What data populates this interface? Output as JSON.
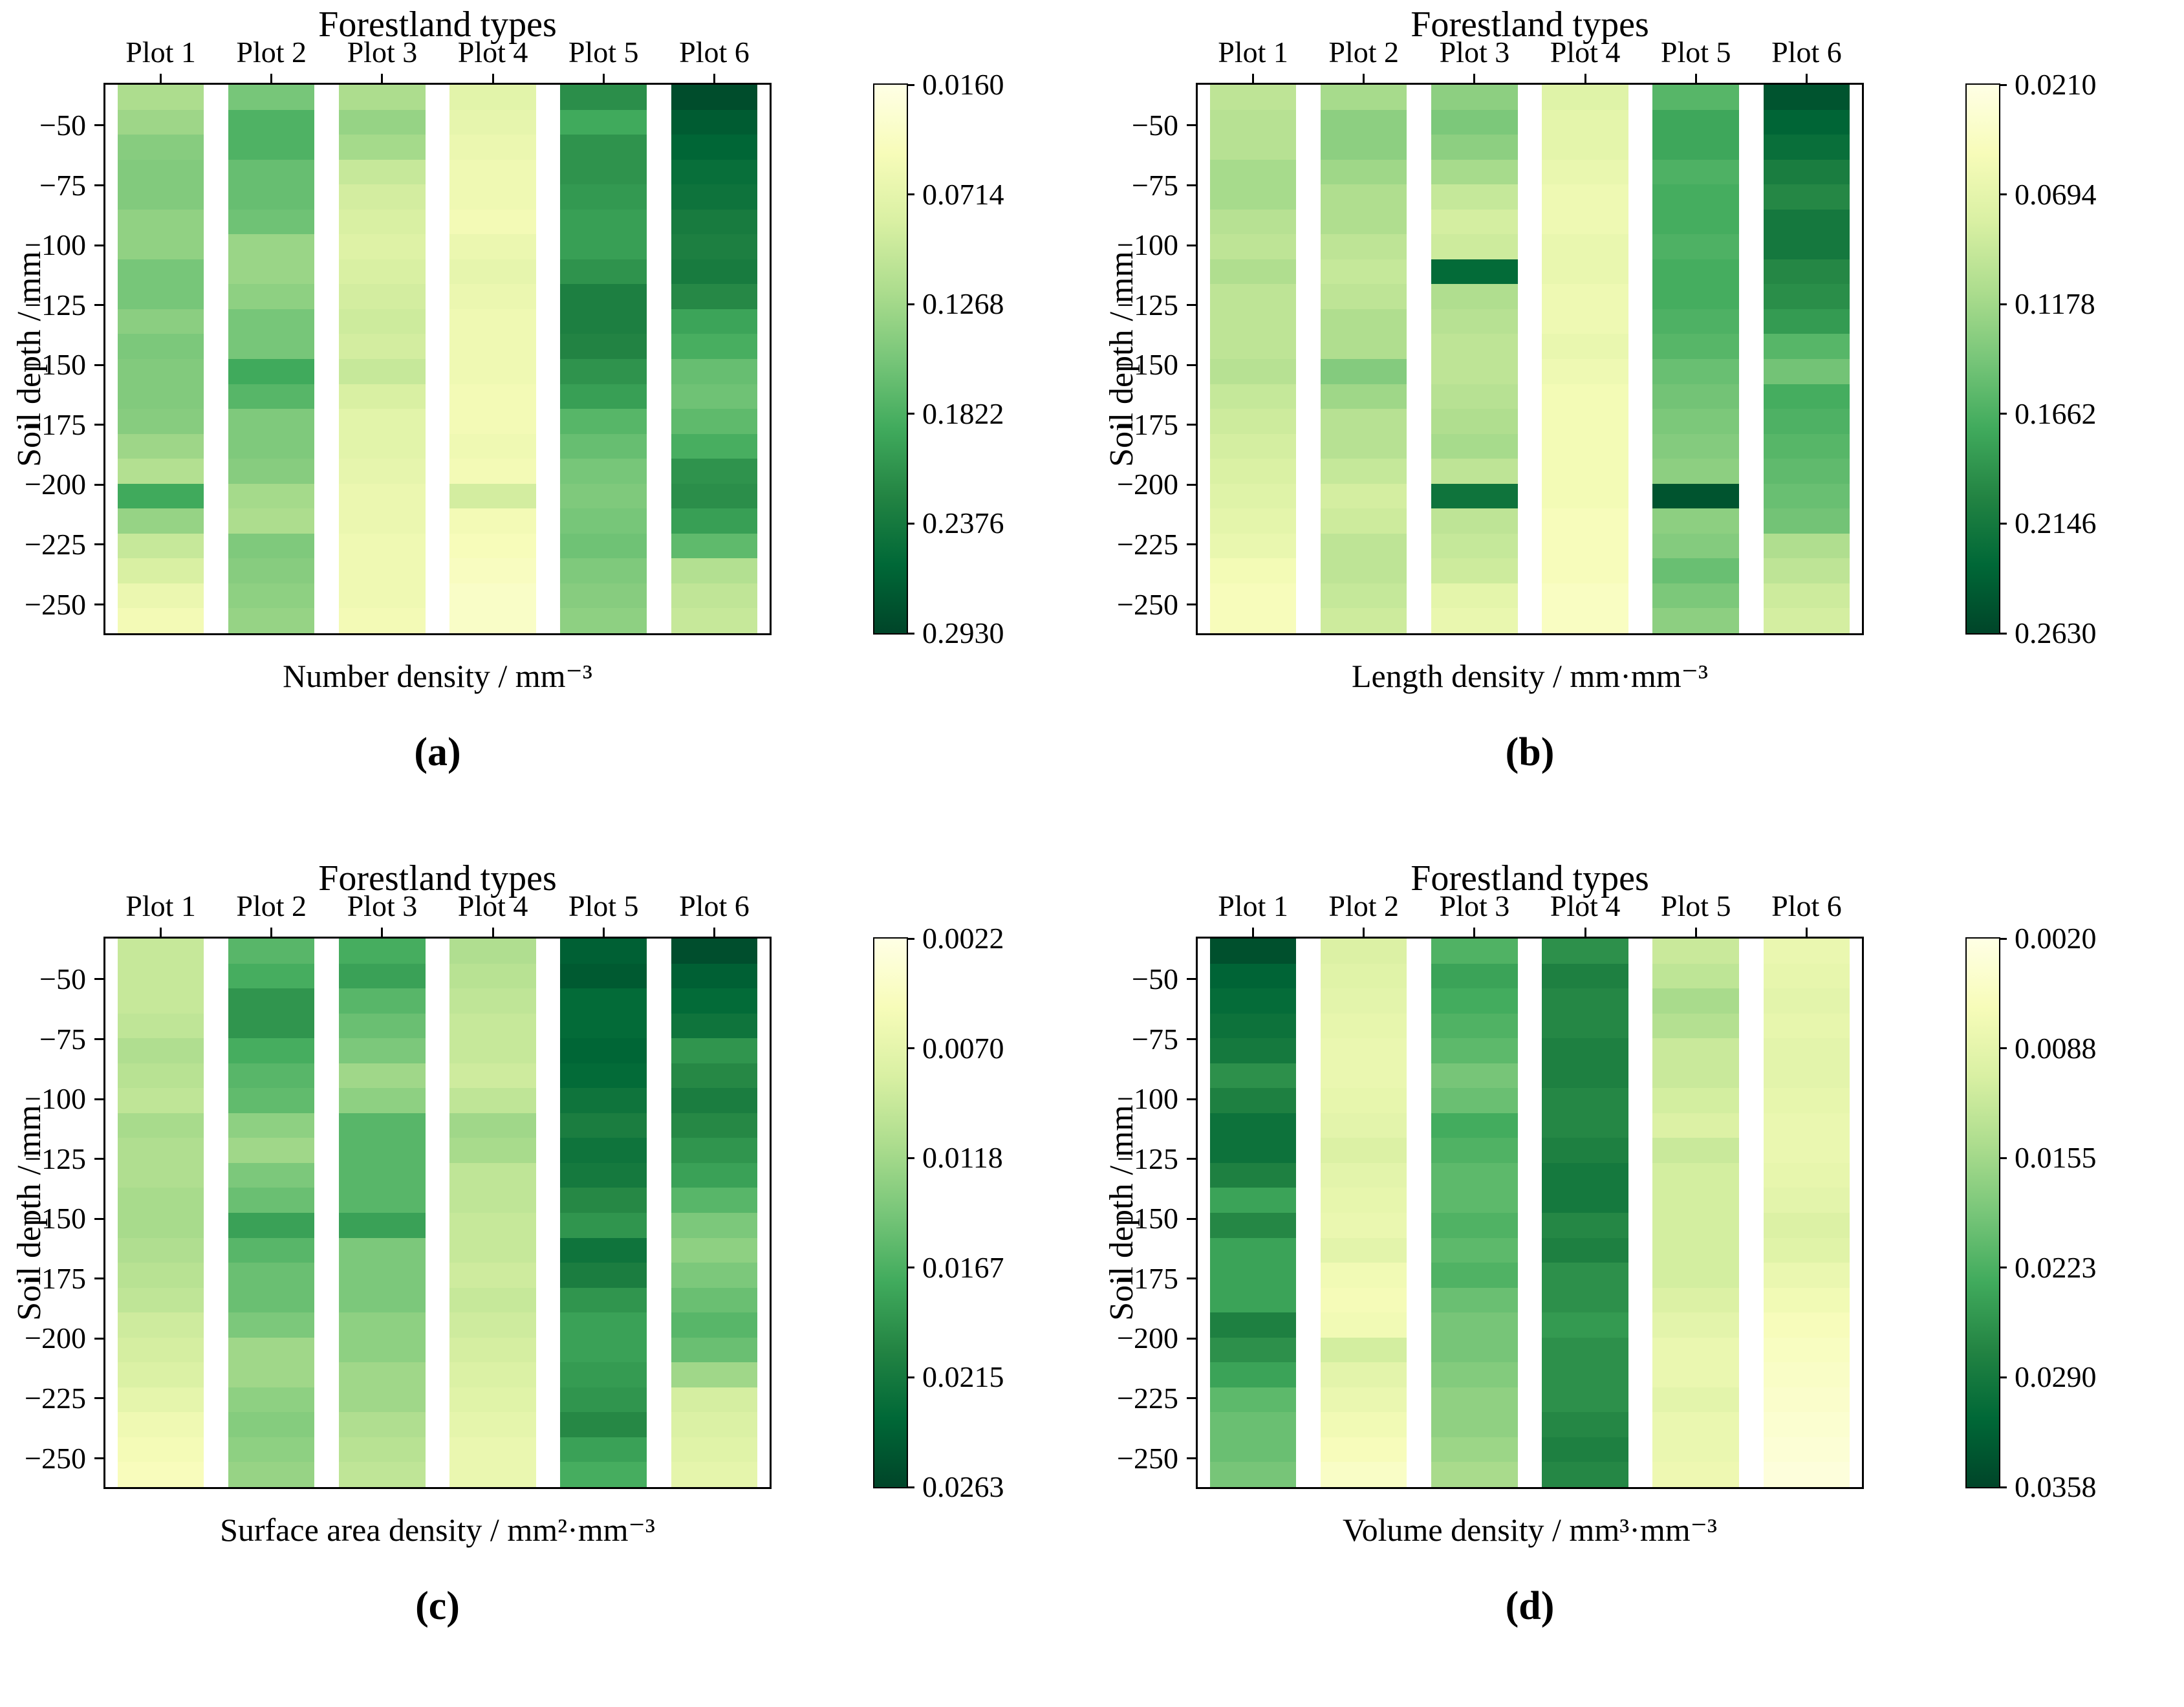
{
  "figure": {
    "background": "#ffffff",
    "text_color": "#000000"
  },
  "colormap_anchors": [
    "#ffffe5",
    "#f7fcb9",
    "#d9f0a3",
    "#addd8e",
    "#78c679",
    "#41ab5d",
    "#238443",
    "#006837",
    "#004529"
  ],
  "chart_data": [
    {
      "id": "a",
      "caption": "(a)",
      "title": "Forestland types",
      "type": "heatmap",
      "xlabel": "Number density / mm⁻³",
      "ylabel": "Soil depth / mm",
      "columns": [
        "Plot 1",
        "Plot 2",
        "Plot 3",
        "Plot 4",
        "Plot 5",
        "Plot 6"
      ],
      "depth_tick_labels": [
        "−50",
        "−75",
        "−100",
        "−125",
        "−150",
        "−175",
        "−200",
        "−225",
        "−250"
      ],
      "depth_ticks": [
        -50,
        -75,
        -100,
        -125,
        -150,
        -175,
        -200,
        -225,
        -250
      ],
      "depth_range": [
        -33,
        -262
      ],
      "row_depths": [
        -40,
        -50,
        -60,
        -70,
        -80,
        -90,
        -100,
        -110,
        -120,
        -130,
        -140,
        -150,
        -160,
        -170,
        -180,
        -190,
        -200,
        -210,
        -220,
        -230,
        -240,
        -250
      ],
      "vmin": 0.016,
      "vmax": 0.293,
      "colorbar_ticks": [
        "0.0160",
        "0.0714",
        "0.1268",
        "0.1822",
        "0.2376",
        "0.2930"
      ],
      "legend_position": "right",
      "grid": false,
      "series": [
        {
          "name": "Plot 1",
          "values": [
            0.12,
            0.13,
            0.145,
            0.148,
            0.148,
            0.138,
            0.138,
            0.155,
            0.155,
            0.142,
            0.152,
            0.148,
            0.148,
            0.145,
            0.13,
            0.115,
            0.19,
            0.135,
            0.1,
            0.085,
            0.065,
            0.055
          ]
        },
        {
          "name": "Plot 2",
          "values": [
            0.155,
            0.18,
            0.18,
            0.165,
            0.165,
            0.16,
            0.132,
            0.132,
            0.14,
            0.155,
            0.155,
            0.19,
            0.175,
            0.15,
            0.15,
            0.145,
            0.125,
            0.12,
            0.15,
            0.145,
            0.14,
            0.135
          ]
        },
        {
          "name": "Plot 3",
          "values": [
            0.12,
            0.135,
            0.125,
            0.1,
            0.09,
            0.085,
            0.08,
            0.085,
            0.09,
            0.095,
            0.09,
            0.1,
            0.085,
            0.075,
            0.075,
            0.07,
            0.065,
            0.065,
            0.06,
            0.06,
            0.06,
            0.055
          ]
        },
        {
          "name": "Plot 4",
          "values": [
            0.075,
            0.07,
            0.065,
            0.06,
            0.06,
            0.055,
            0.065,
            0.07,
            0.065,
            0.06,
            0.06,
            0.06,
            0.055,
            0.055,
            0.06,
            0.055,
            0.09,
            0.055,
            0.05,
            0.045,
            0.04,
            0.04
          ]
        },
        {
          "name": "Plot 5",
          "values": [
            0.215,
            0.19,
            0.21,
            0.21,
            0.205,
            0.2,
            0.2,
            0.21,
            0.23,
            0.23,
            0.225,
            0.21,
            0.2,
            0.175,
            0.165,
            0.155,
            0.15,
            0.155,
            0.16,
            0.15,
            0.145,
            0.14
          ]
        },
        {
          "name": "Plot 6",
          "values": [
            0.285,
            0.27,
            0.26,
            0.25,
            0.245,
            0.235,
            0.23,
            0.235,
            0.22,
            0.195,
            0.185,
            0.165,
            0.16,
            0.17,
            0.185,
            0.21,
            0.215,
            0.2,
            0.17,
            0.115,
            0.105,
            0.1
          ]
        }
      ]
    },
    {
      "id": "b",
      "caption": "(b)",
      "title": "Forestland types",
      "type": "heatmap",
      "xlabel": "Length density / mm·mm⁻³",
      "ylabel": "Soil depth / mm",
      "columns": [
        "Plot 1",
        "Plot 2",
        "Plot 3",
        "Plot 4",
        "Plot 5",
        "Plot 6"
      ],
      "depth_tick_labels": [
        "−50",
        "−75",
        "−100",
        "−125",
        "−150",
        "−175",
        "−200",
        "−225",
        "−250"
      ],
      "depth_ticks": [
        -50,
        -75,
        -100,
        -125,
        -150,
        -175,
        -200,
        -225,
        -250
      ],
      "depth_range": [
        -33,
        -262
      ],
      "row_depths": [
        -40,
        -50,
        -60,
        -70,
        -80,
        -90,
        -100,
        -110,
        -120,
        -130,
        -140,
        -150,
        -160,
        -170,
        -180,
        -190,
        -200,
        -210,
        -220,
        -230,
        -240,
        -250
      ],
      "vmin": 0.021,
      "vmax": 0.263,
      "colorbar_ticks": [
        "0.0210",
        "0.0694",
        "0.1178",
        "0.1662",
        "0.2146",
        "0.2630"
      ],
      "legend_position": "right",
      "grid": false,
      "series": [
        {
          "name": "Plot 1",
          "values": [
            0.1,
            0.105,
            0.105,
            0.115,
            0.115,
            0.105,
            0.1,
            0.11,
            0.1,
            0.1,
            0.1,
            0.105,
            0.095,
            0.09,
            0.085,
            0.08,
            0.075,
            0.07,
            0.065,
            0.055,
            0.05,
            0.05
          ]
        },
        {
          "name": "Plot 2",
          "values": [
            0.115,
            0.13,
            0.13,
            0.12,
            0.11,
            0.11,
            0.1,
            0.095,
            0.1,
            0.11,
            0.11,
            0.135,
            0.12,
            0.105,
            0.105,
            0.095,
            0.085,
            0.09,
            0.1,
            0.1,
            0.095,
            0.09
          ]
        },
        {
          "name": "Plot 3",
          "values": [
            0.13,
            0.14,
            0.13,
            0.115,
            0.095,
            0.085,
            0.09,
            0.23,
            0.11,
            0.105,
            0.1,
            0.1,
            0.105,
            0.11,
            0.115,
            0.1,
            0.22,
            0.1,
            0.095,
            0.09,
            0.07,
            0.065
          ]
        },
        {
          "name": "Plot 4",
          "values": [
            0.075,
            0.07,
            0.07,
            0.065,
            0.06,
            0.06,
            0.065,
            0.065,
            0.06,
            0.06,
            0.065,
            0.06,
            0.055,
            0.055,
            0.055,
            0.055,
            0.055,
            0.05,
            0.05,
            0.05,
            0.045,
            0.045
          ]
        },
        {
          "name": "Plot 5",
          "values": [
            0.16,
            0.175,
            0.175,
            0.165,
            0.17,
            0.17,
            0.165,
            0.17,
            0.17,
            0.165,
            0.16,
            0.15,
            0.145,
            0.14,
            0.135,
            0.13,
            0.25,
            0.13,
            0.135,
            0.15,
            0.14,
            0.13
          ]
        },
        {
          "name": "Plot 6",
          "values": [
            0.25,
            0.235,
            0.225,
            0.21,
            0.2,
            0.215,
            0.215,
            0.2,
            0.195,
            0.185,
            0.16,
            0.145,
            0.17,
            0.165,
            0.16,
            0.155,
            0.15,
            0.145,
            0.11,
            0.1,
            0.09,
            0.085
          ]
        }
      ]
    },
    {
      "id": "c",
      "caption": "(c)",
      "title": "Forestland types",
      "type": "heatmap",
      "xlabel": "Surface area density / mm²·mm⁻³",
      "ylabel": "Soil depth / mm",
      "columns": [
        "Plot 1",
        "Plot 2",
        "Plot 3",
        "Plot 4",
        "Plot 5",
        "Plot 6"
      ],
      "depth_tick_labels": [
        "−50",
        "−75",
        "−100",
        "−125",
        "−150",
        "−175",
        "−200",
        "−225",
        "−250"
      ],
      "depth_ticks": [
        -50,
        -75,
        -100,
        -125,
        -150,
        -175,
        -200,
        -225,
        -250
      ],
      "depth_range": [
        -33,
        -262
      ],
      "row_depths": [
        -40,
        -50,
        -60,
        -70,
        -80,
        -90,
        -100,
        -110,
        -120,
        -130,
        -140,
        -150,
        -160,
        -170,
        -180,
        -190,
        -200,
        -210,
        -220,
        -230,
        -240,
        -250
      ],
      "vmin": 0.0022,
      "vmax": 0.0263,
      "colorbar_ticks": [
        "0.0022",
        "0.0070",
        "0.0118",
        "0.0167",
        "0.0215",
        "0.0263"
      ],
      "legend_position": "right",
      "grid": false,
      "series": [
        {
          "name": "Plot 1",
          "values": [
            0.0095,
            0.0095,
            0.0095,
            0.01,
            0.011,
            0.0105,
            0.01,
            0.0115,
            0.011,
            0.011,
            0.0115,
            0.0115,
            0.011,
            0.0105,
            0.01,
            0.009,
            0.0085,
            0.008,
            0.007,
            0.006,
            0.0055,
            0.005
          ]
        },
        {
          "name": "Plot 2",
          "values": [
            0.016,
            0.017,
            0.019,
            0.019,
            0.017,
            0.016,
            0.0155,
            0.013,
            0.012,
            0.014,
            0.015,
            0.018,
            0.016,
            0.015,
            0.015,
            0.014,
            0.012,
            0.012,
            0.013,
            0.0135,
            0.013,
            0.0125
          ]
        },
        {
          "name": "Plot 3",
          "values": [
            0.017,
            0.018,
            0.016,
            0.015,
            0.014,
            0.012,
            0.013,
            0.016,
            0.016,
            0.016,
            0.016,
            0.018,
            0.014,
            0.014,
            0.014,
            0.013,
            0.013,
            0.012,
            0.012,
            0.011,
            0.0105,
            0.01
          ]
        },
        {
          "name": "Plot 4",
          "values": [
            0.011,
            0.0105,
            0.01,
            0.0095,
            0.0095,
            0.009,
            0.01,
            0.012,
            0.0115,
            0.01,
            0.01,
            0.0095,
            0.0095,
            0.009,
            0.0095,
            0.009,
            0.0085,
            0.008,
            0.0075,
            0.007,
            0.0065,
            0.0065
          ]
        },
        {
          "name": "Plot 5",
          "values": [
            0.024,
            0.0245,
            0.023,
            0.023,
            0.0235,
            0.023,
            0.022,
            0.021,
            0.022,
            0.0215,
            0.02,
            0.019,
            0.022,
            0.021,
            0.019,
            0.018,
            0.018,
            0.0185,
            0.019,
            0.02,
            0.018,
            0.017
          ]
        },
        {
          "name": "Plot 6",
          "values": [
            0.0255,
            0.024,
            0.023,
            0.022,
            0.019,
            0.02,
            0.021,
            0.02,
            0.019,
            0.018,
            0.016,
            0.014,
            0.013,
            0.014,
            0.015,
            0.016,
            0.015,
            0.012,
            0.0085,
            0.008,
            0.0075,
            0.007
          ]
        }
      ]
    },
    {
      "id": "d",
      "caption": "(d)",
      "title": "Forestland types",
      "type": "heatmap",
      "xlabel": "Volume density / mm³·mm⁻³",
      "ylabel": "Soil depth / mm",
      "columns": [
        "Plot 1",
        "Plot 2",
        "Plot 3",
        "Plot 4",
        "Plot 5",
        "Plot 6"
      ],
      "depth_tick_labels": [
        "−50",
        "−75",
        "−100",
        "−125",
        "−150",
        "−175",
        "−200",
        "−225",
        "−250"
      ],
      "depth_ticks": [
        -50,
        -75,
        -100,
        -125,
        -150,
        -175,
        -200,
        -225,
        -250
      ],
      "depth_range": [
        -33,
        -262
      ],
      "row_depths": [
        -40,
        -50,
        -60,
        -70,
        -80,
        -90,
        -100,
        -110,
        -120,
        -130,
        -140,
        -150,
        -160,
        -170,
        -180,
        -190,
        -200,
        -210,
        -220,
        -230,
        -240,
        -250
      ],
      "vmin": 0.002,
      "vmax": 0.0358,
      "colorbar_ticks": [
        "0.0020",
        "0.0088",
        "0.0155",
        "0.0223",
        "0.0290",
        "0.0358"
      ],
      "legend_position": "right",
      "grid": false,
      "series": [
        {
          "name": "Plot 1",
          "values": [
            0.0345,
            0.032,
            0.031,
            0.03,
            0.029,
            0.026,
            0.028,
            0.03,
            0.03,
            0.028,
            0.024,
            0.027,
            0.024,
            0.024,
            0.024,
            0.028,
            0.026,
            0.024,
            0.021,
            0.02,
            0.02,
            0.019
          ]
        },
        {
          "name": "Plot 2",
          "values": [
            0.01,
            0.0095,
            0.009,
            0.0085,
            0.008,
            0.008,
            0.0085,
            0.009,
            0.01,
            0.009,
            0.0085,
            0.008,
            0.009,
            0.007,
            0.0065,
            0.007,
            0.011,
            0.009,
            0.008,
            0.007,
            0.006,
            0.005
          ]
        },
        {
          "name": "Plot 3",
          "values": [
            0.022,
            0.024,
            0.023,
            0.022,
            0.021,
            0.019,
            0.02,
            0.023,
            0.022,
            0.021,
            0.021,
            0.022,
            0.021,
            0.022,
            0.02,
            0.019,
            0.019,
            0.018,
            0.017,
            0.017,
            0.016,
            0.015
          ]
        },
        {
          "name": "Plot 4",
          "values": [
            0.026,
            0.028,
            0.027,
            0.027,
            0.028,
            0.028,
            0.027,
            0.027,
            0.028,
            0.029,
            0.029,
            0.027,
            0.028,
            0.026,
            0.026,
            0.025,
            0.026,
            0.026,
            0.026,
            0.027,
            0.028,
            0.027
          ]
        },
        {
          "name": "Plot 5",
          "values": [
            0.012,
            0.013,
            0.015,
            0.014,
            0.012,
            0.012,
            0.011,
            0.01,
            0.012,
            0.011,
            0.011,
            0.011,
            0.011,
            0.011,
            0.01,
            0.009,
            0.008,
            0.008,
            0.009,
            0.008,
            0.008,
            0.0075
          ]
        },
        {
          "name": "Plot 6",
          "values": [
            0.008,
            0.0085,
            0.009,
            0.0085,
            0.009,
            0.009,
            0.0085,
            0.008,
            0.008,
            0.0085,
            0.009,
            0.01,
            0.0095,
            0.008,
            0.007,
            0.006,
            0.0055,
            0.005,
            0.0045,
            0.004,
            0.0035,
            0.003
          ]
        }
      ]
    }
  ]
}
